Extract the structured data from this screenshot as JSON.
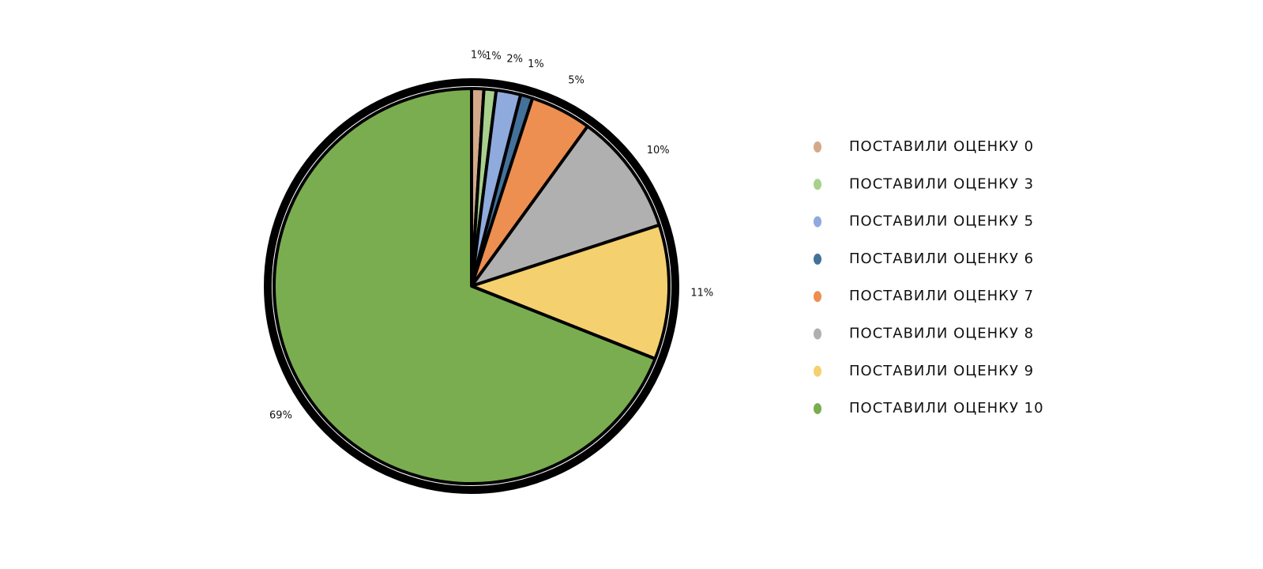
{
  "chart_data": {
    "type": "pie",
    "categories": [
      "ПОСТАВИЛИ ОЦЕНКУ 0",
      "ПОСТАВИЛИ ОЦЕНКУ 3",
      "ПОСТАВИЛИ ОЦЕНКУ 5",
      "ПОСТАВИЛИ ОЦЕНКУ 6",
      "ПОСТАВИЛИ ОЦЕНКУ 7",
      "ПОСТАВИЛИ ОЦЕНКУ 8",
      "ПОСТАВИЛИ ОЦЕНКУ 9",
      "ПОСТАВИЛИ ОЦЕНКУ 10"
    ],
    "values": [
      1,
      1,
      2,
      1,
      5,
      10,
      11,
      69
    ],
    "value_labels": [
      "1%",
      "1%",
      "2%",
      "1%",
      "5%",
      "10%",
      "11%",
      "69%"
    ],
    "colors": [
      "#d4a98a",
      "#a8d08d",
      "#8faadc",
      "#44719a",
      "#ed8f50",
      "#b0b0b0",
      "#f5d06f",
      "#7aad4f"
    ],
    "legend": "right"
  }
}
